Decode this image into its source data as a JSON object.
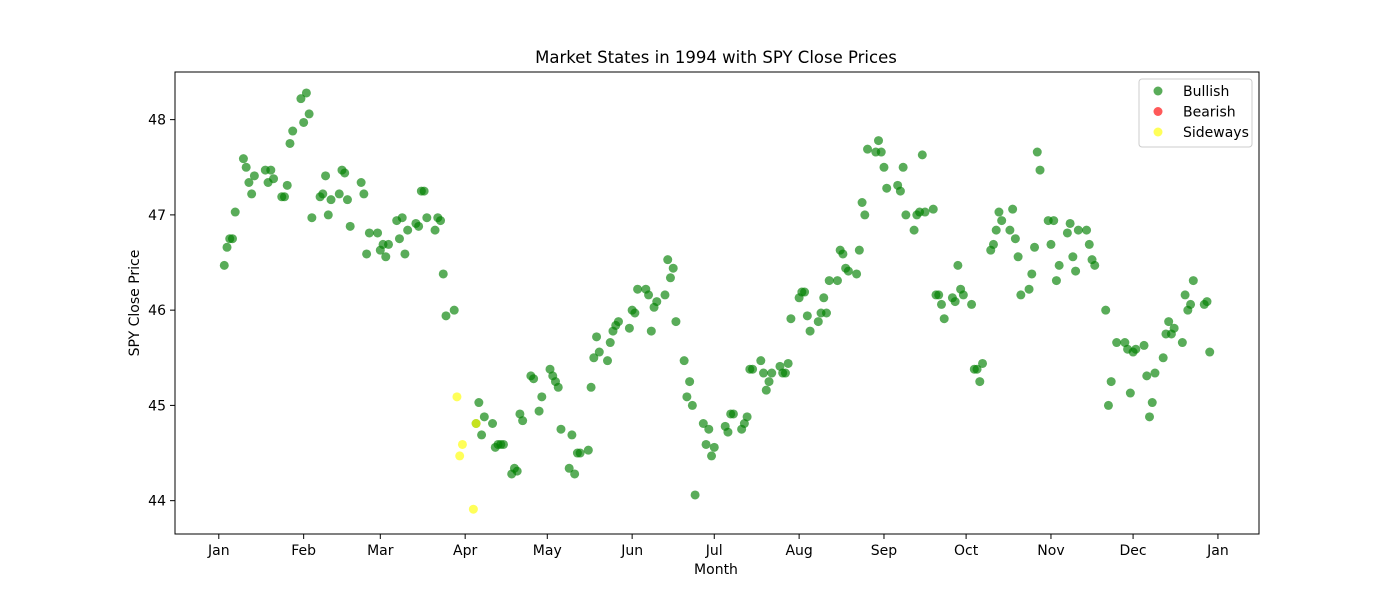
{
  "chart_data": {
    "type": "scatter",
    "title": "Market States in 1994 with SPY Close Prices",
    "xlabel": "Month",
    "ylabel": "SPY Close Price",
    "x_ticks": [
      "Jan",
      "Feb",
      "Mar",
      "Apr",
      "May",
      "Jun",
      "Jul",
      "Aug",
      "Sep",
      "Oct",
      "Nov",
      "Dec",
      "Jan"
    ],
    "x_tick_dates": [
      "1994-01-01",
      "1994-02-01",
      "1994-03-01",
      "1994-04-01",
      "1994-05-01",
      "1994-06-01",
      "1994-07-01",
      "1994-08-01",
      "1994-09-01",
      "1994-10-01",
      "1994-11-01",
      "1994-12-01",
      "1995-01-01"
    ],
    "xlim": [
      "1993-12-16",
      "1995-01-16"
    ],
    "y_ticks": [
      44,
      45,
      46,
      47,
      48
    ],
    "ylim": [
      43.65,
      48.5
    ],
    "grid": false,
    "legend_position": "top-right",
    "series": [
      {
        "name": "Bullish",
        "color": "#008000",
        "points": [
          [
            "1994-01-03",
            46.47
          ],
          [
            "1994-01-04",
            46.66
          ],
          [
            "1994-01-05",
            46.75
          ],
          [
            "1994-01-06",
            46.75
          ],
          [
            "1994-01-07",
            47.03
          ],
          [
            "1994-01-10",
            47.59
          ],
          [
            "1994-01-11",
            47.5
          ],
          [
            "1994-01-12",
            47.34
          ],
          [
            "1994-01-13",
            47.22
          ],
          [
            "1994-01-14",
            47.41
          ],
          [
            "1994-01-18",
            47.47
          ],
          [
            "1994-01-19",
            47.34
          ],
          [
            "1994-01-20",
            47.47
          ],
          [
            "1994-01-21",
            47.38
          ],
          [
            "1994-01-24",
            47.19
          ],
          [
            "1994-01-25",
            47.19
          ],
          [
            "1994-01-26",
            47.31
          ],
          [
            "1994-01-27",
            47.75
          ],
          [
            "1994-01-28",
            47.88
          ],
          [
            "1994-01-31",
            48.22
          ],
          [
            "1994-02-01",
            47.97
          ],
          [
            "1994-02-02",
            48.28
          ],
          [
            "1994-02-03",
            48.06
          ],
          [
            "1994-02-04",
            46.97
          ],
          [
            "1994-02-07",
            47.19
          ],
          [
            "1994-02-08",
            47.22
          ],
          [
            "1994-02-09",
            47.41
          ],
          [
            "1994-02-10",
            47.0
          ],
          [
            "1994-02-11",
            47.16
          ],
          [
            "1994-02-14",
            47.22
          ],
          [
            "1994-02-15",
            47.47
          ],
          [
            "1994-02-16",
            47.44
          ],
          [
            "1994-02-17",
            47.16
          ],
          [
            "1994-02-18",
            46.88
          ],
          [
            "1994-02-22",
            47.34
          ],
          [
            "1994-02-23",
            47.22
          ],
          [
            "1994-02-24",
            46.59
          ],
          [
            "1994-02-25",
            46.81
          ],
          [
            "1994-02-28",
            46.81
          ],
          [
            "1994-03-01",
            46.63
          ],
          [
            "1994-03-02",
            46.69
          ],
          [
            "1994-03-03",
            46.56
          ],
          [
            "1994-03-04",
            46.69
          ],
          [
            "1994-03-07",
            46.94
          ],
          [
            "1994-03-08",
            46.75
          ],
          [
            "1994-03-09",
            46.97
          ],
          [
            "1994-03-10",
            46.59
          ],
          [
            "1994-03-11",
            46.84
          ],
          [
            "1994-03-14",
            46.91
          ],
          [
            "1994-03-15",
            46.88
          ],
          [
            "1994-03-16",
            47.25
          ],
          [
            "1994-03-17",
            47.25
          ],
          [
            "1994-03-18",
            46.97
          ],
          [
            "1994-03-21",
            46.84
          ],
          [
            "1994-03-22",
            46.97
          ],
          [
            "1994-03-23",
            46.94
          ],
          [
            "1994-03-24",
            46.38
          ],
          [
            "1994-03-25",
            45.94
          ],
          [
            "1994-03-28",
            46.0
          ],
          [
            "1994-04-05",
            44.81
          ],
          [
            "1994-04-06",
            45.03
          ],
          [
            "1994-04-07",
            44.69
          ],
          [
            "1994-04-08",
            44.88
          ],
          [
            "1994-04-11",
            44.81
          ],
          [
            "1994-04-12",
            44.56
          ],
          [
            "1994-04-13",
            44.59
          ],
          [
            "1994-04-14",
            44.59
          ],
          [
            "1994-04-15",
            44.59
          ],
          [
            "1994-04-18",
            44.28
          ],
          [
            "1994-04-19",
            44.34
          ],
          [
            "1994-04-20",
            44.31
          ],
          [
            "1994-04-21",
            44.91
          ],
          [
            "1994-04-22",
            44.84
          ],
          [
            "1994-04-25",
            45.31
          ],
          [
            "1994-04-26",
            45.28
          ],
          [
            "1994-04-28",
            44.94
          ],
          [
            "1994-04-29",
            45.09
          ],
          [
            "1994-05-02",
            45.38
          ],
          [
            "1994-05-03",
            45.31
          ],
          [
            "1994-05-04",
            45.25
          ],
          [
            "1994-05-05",
            45.19
          ],
          [
            "1994-05-06",
            44.75
          ],
          [
            "1994-05-09",
            44.34
          ],
          [
            "1994-05-10",
            44.69
          ],
          [
            "1994-05-11",
            44.28
          ],
          [
            "1994-05-12",
            44.5
          ],
          [
            "1994-05-13",
            44.5
          ],
          [
            "1994-05-16",
            44.53
          ],
          [
            "1994-05-17",
            45.19
          ],
          [
            "1994-05-18",
            45.5
          ],
          [
            "1994-05-19",
            45.72
          ],
          [
            "1994-05-20",
            45.56
          ],
          [
            "1994-05-23",
            45.47
          ],
          [
            "1994-05-24",
            45.66
          ],
          [
            "1994-05-25",
            45.78
          ],
          [
            "1994-05-26",
            45.84
          ],
          [
            "1994-05-27",
            45.88
          ],
          [
            "1994-05-31",
            45.81
          ],
          [
            "1994-06-01",
            46.0
          ],
          [
            "1994-06-02",
            45.97
          ],
          [
            "1994-06-03",
            46.22
          ],
          [
            "1994-06-06",
            46.22
          ],
          [
            "1994-06-07",
            46.16
          ],
          [
            "1994-06-08",
            45.78
          ],
          [
            "1994-06-09",
            46.03
          ],
          [
            "1994-06-10",
            46.09
          ],
          [
            "1994-06-13",
            46.16
          ],
          [
            "1994-06-14",
            46.53
          ],
          [
            "1994-06-15",
            46.34
          ],
          [
            "1994-06-16",
            46.44
          ],
          [
            "1994-06-17",
            45.88
          ],
          [
            "1994-06-20",
            45.47
          ],
          [
            "1994-06-21",
            45.09
          ],
          [
            "1994-06-22",
            45.25
          ],
          [
            "1994-06-23",
            45.0
          ],
          [
            "1994-06-24",
            44.06
          ],
          [
            "1994-06-27",
            44.81
          ],
          [
            "1994-06-28",
            44.59
          ],
          [
            "1994-06-29",
            44.75
          ],
          [
            "1994-06-30",
            44.47
          ],
          [
            "1994-07-01",
            44.56
          ],
          [
            "1994-07-05",
            44.78
          ],
          [
            "1994-07-06",
            44.72
          ],
          [
            "1994-07-07",
            44.91
          ],
          [
            "1994-07-08",
            44.91
          ],
          [
            "1994-07-11",
            44.75
          ],
          [
            "1994-07-12",
            44.81
          ],
          [
            "1994-07-13",
            44.88
          ],
          [
            "1994-07-14",
            45.38
          ],
          [
            "1994-07-15",
            45.38
          ],
          [
            "1994-07-18",
            45.47
          ],
          [
            "1994-07-19",
            45.34
          ],
          [
            "1994-07-20",
            45.16
          ],
          [
            "1994-07-21",
            45.25
          ],
          [
            "1994-07-22",
            45.34
          ],
          [
            "1994-07-25",
            45.41
          ],
          [
            "1994-07-26",
            45.34
          ],
          [
            "1994-07-27",
            45.34
          ],
          [
            "1994-07-28",
            45.44
          ],
          [
            "1994-07-29",
            45.91
          ],
          [
            "1994-08-01",
            46.13
          ],
          [
            "1994-08-02",
            46.19
          ],
          [
            "1994-08-03",
            46.19
          ],
          [
            "1994-08-04",
            45.94
          ],
          [
            "1994-08-05",
            45.78
          ],
          [
            "1994-08-08",
            45.88
          ],
          [
            "1994-08-09",
            45.97
          ],
          [
            "1994-08-10",
            46.13
          ],
          [
            "1994-08-11",
            45.97
          ],
          [
            "1994-08-12",
            46.31
          ],
          [
            "1994-08-15",
            46.31
          ],
          [
            "1994-08-16",
            46.63
          ],
          [
            "1994-08-17",
            46.59
          ],
          [
            "1994-08-18",
            46.44
          ],
          [
            "1994-08-19",
            46.41
          ],
          [
            "1994-08-22",
            46.38
          ],
          [
            "1994-08-23",
            46.63
          ],
          [
            "1994-08-24",
            47.13
          ],
          [
            "1994-08-25",
            47.0
          ],
          [
            "1994-08-26",
            47.69
          ],
          [
            "1994-08-29",
            47.66
          ],
          [
            "1994-08-30",
            47.78
          ],
          [
            "1994-08-31",
            47.66
          ],
          [
            "1994-09-01",
            47.5
          ],
          [
            "1994-09-02",
            47.28
          ],
          [
            "1994-09-06",
            47.31
          ],
          [
            "1994-09-07",
            47.25
          ],
          [
            "1994-09-08",
            47.5
          ],
          [
            "1994-09-09",
            47.0
          ],
          [
            "1994-09-12",
            46.84
          ],
          [
            "1994-09-13",
            47.0
          ],
          [
            "1994-09-14",
            47.03
          ],
          [
            "1994-09-15",
            47.63
          ],
          [
            "1994-09-16",
            47.03
          ],
          [
            "1994-09-19",
            47.06
          ],
          [
            "1994-09-20",
            46.16
          ],
          [
            "1994-09-21",
            46.16
          ],
          [
            "1994-09-22",
            46.06
          ],
          [
            "1994-09-23",
            45.91
          ],
          [
            "1994-09-26",
            46.13
          ],
          [
            "1994-09-27",
            46.09
          ],
          [
            "1994-09-28",
            46.47
          ],
          [
            "1994-09-29",
            46.22
          ],
          [
            "1994-09-30",
            46.16
          ],
          [
            "1994-10-03",
            46.06
          ],
          [
            "1994-10-04",
            45.38
          ],
          [
            "1994-10-05",
            45.38
          ],
          [
            "1994-10-06",
            45.25
          ],
          [
            "1994-10-07",
            45.44
          ],
          [
            "1994-10-10",
            46.63
          ],
          [
            "1994-10-11",
            46.69
          ],
          [
            "1994-10-12",
            46.84
          ],
          [
            "1994-10-13",
            47.03
          ],
          [
            "1994-10-14",
            46.94
          ],
          [
            "1994-10-17",
            46.84
          ],
          [
            "1994-10-18",
            47.06
          ],
          [
            "1994-10-19",
            46.75
          ],
          [
            "1994-10-20",
            46.56
          ],
          [
            "1994-10-21",
            46.16
          ],
          [
            "1994-10-24",
            46.22
          ],
          [
            "1994-10-25",
            46.38
          ],
          [
            "1994-10-26",
            46.66
          ],
          [
            "1994-10-27",
            47.66
          ],
          [
            "1994-10-28",
            47.47
          ],
          [
            "1994-10-31",
            46.94
          ],
          [
            "1994-11-01",
            46.69
          ],
          [
            "1994-11-02",
            46.94
          ],
          [
            "1994-11-03",
            46.31
          ],
          [
            "1994-11-04",
            46.47
          ],
          [
            "1994-11-07",
            46.81
          ],
          [
            "1994-11-08",
            46.91
          ],
          [
            "1994-11-09",
            46.56
          ],
          [
            "1994-11-10",
            46.41
          ],
          [
            "1994-11-11",
            46.84
          ],
          [
            "1994-11-14",
            46.84
          ],
          [
            "1994-11-15",
            46.69
          ],
          [
            "1994-11-16",
            46.53
          ],
          [
            "1994-11-17",
            46.47
          ],
          [
            "1994-11-21",
            46.0
          ],
          [
            "1994-11-22",
            45.0
          ],
          [
            "1994-11-23",
            45.25
          ],
          [
            "1994-11-25",
            45.66
          ],
          [
            "1994-11-28",
            45.66
          ],
          [
            "1994-11-29",
            45.59
          ],
          [
            "1994-11-30",
            45.13
          ],
          [
            "1994-12-01",
            45.56
          ],
          [
            "1994-12-02",
            45.59
          ],
          [
            "1994-12-05",
            45.63
          ],
          [
            "1994-12-06",
            45.31
          ],
          [
            "1994-12-07",
            44.88
          ],
          [
            "1994-12-08",
            45.03
          ],
          [
            "1994-12-09",
            45.34
          ],
          [
            "1994-12-12",
            45.5
          ],
          [
            "1994-12-13",
            45.75
          ],
          [
            "1994-12-14",
            45.88
          ],
          [
            "1994-12-15",
            45.75
          ],
          [
            "1994-12-16",
            45.81
          ],
          [
            "1994-12-19",
            45.66
          ],
          [
            "1994-12-20",
            46.16
          ],
          [
            "1994-12-21",
            46.0
          ],
          [
            "1994-12-22",
            46.06
          ],
          [
            "1994-12-23",
            46.31
          ],
          [
            "1994-12-27",
            46.06
          ],
          [
            "1994-12-28",
            46.09
          ],
          [
            "1994-12-29",
            45.56
          ]
        ]
      },
      {
        "name": "Bearish",
        "color": "#ff0000",
        "points": []
      },
      {
        "name": "Sideways",
        "color": "#ffff00",
        "points": [
          [
            "1994-03-29",
            45.09
          ],
          [
            "1994-03-30",
            44.47
          ],
          [
            "1994-03-31",
            44.59
          ],
          [
            "1994-04-04",
            43.91
          ],
          [
            "1994-04-05",
            44.81
          ]
        ]
      }
    ]
  }
}
